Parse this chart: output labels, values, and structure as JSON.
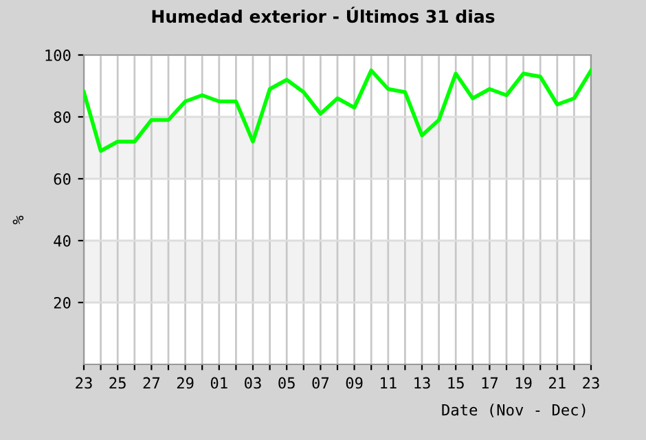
{
  "chart_data": {
    "type": "line",
    "title": "Humedad exterior - Últimos 31 dias",
    "xlabel": "Date (Nov - Dec)",
    "ylabel": "%",
    "categories": [
      "23",
      null,
      "25",
      null,
      "27",
      null,
      "29",
      null,
      "01",
      null,
      "03",
      null,
      "05",
      null,
      "07",
      null,
      "09",
      null,
      "11",
      null,
      "13",
      null,
      "15",
      null,
      "17",
      null,
      "19",
      null,
      "21",
      null,
      "23"
    ],
    "series": [
      {
        "color": "#00ff00",
        "values": [
          88,
          69,
          72,
          72,
          79,
          79,
          85,
          87,
          85,
          85,
          72,
          89,
          92,
          88,
          81,
          86,
          83,
          95,
          89,
          88,
          74,
          79,
          94,
          86,
          89,
          87,
          94,
          93,
          84,
          86,
          95
        ]
      }
    ],
    "ylim": [
      0,
      100
    ],
    "yticks": [
      20,
      40,
      60,
      80,
      100
    ],
    "grid": true,
    "marker": "none",
    "line_style": "solid",
    "bands": [
      {
        "axis": "y",
        "from": 20,
        "to": 40,
        "color": "#f2f2f2"
      },
      {
        "axis": "y",
        "from": 60,
        "to": 80,
        "color": "#f2f2f2"
      }
    ]
  }
}
